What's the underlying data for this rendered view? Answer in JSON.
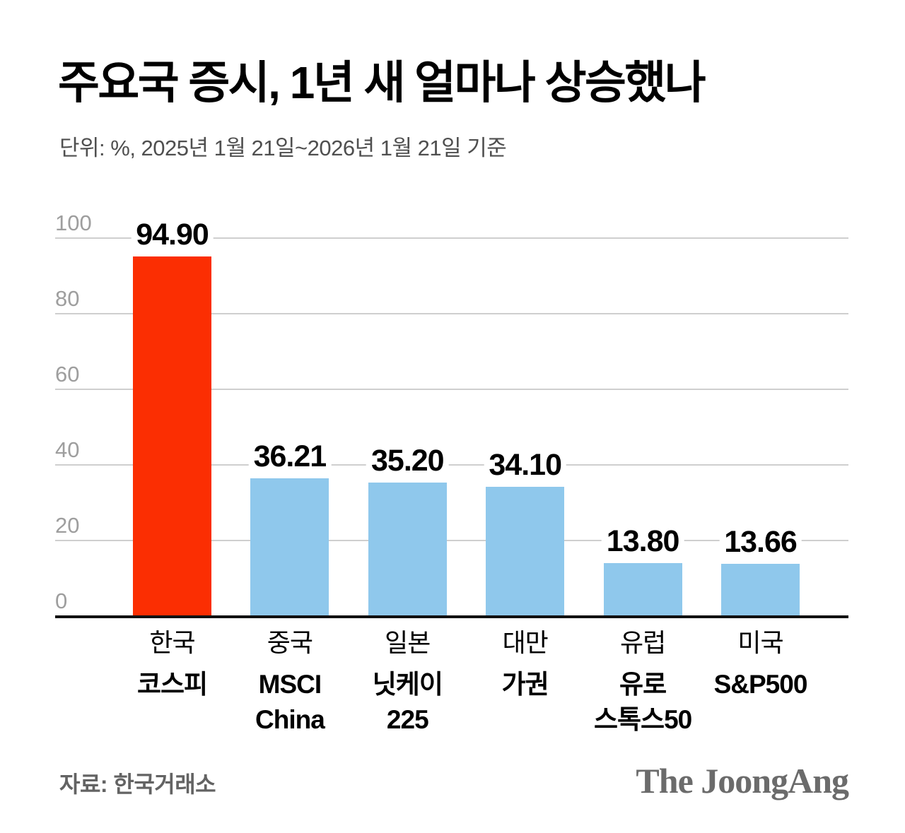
{
  "title": "주요국 증시, 1년 새 얼마나 상승했나",
  "subtitle": "단위: %, 2025년 1월 21일~2026년 1월 21일 기준",
  "source": "자료: 한국거래소",
  "logo": "The JoongAng",
  "colors": {
    "highlight_bar": "#fb2e02",
    "normal_bar": "#8fc8ec",
    "gridline": "#cfcfcf",
    "baseline": "#111111",
    "ytick_text": "#9e9e9e"
  },
  "chart_data": {
    "type": "bar",
    "title": "주요국 증시, 1년 새 얼마나 상승했나",
    "unit": "%",
    "period": "2025년 1월 21일~2026년 1월 21일",
    "categories": [
      {
        "country": "한국",
        "index": "코스피"
      },
      {
        "country": "중국",
        "index": "MSCI\nChina"
      },
      {
        "country": "일본",
        "index": "닛케이\n225"
      },
      {
        "country": "대만",
        "index": "가권"
      },
      {
        "country": "유럽",
        "index": "유로\n스톡스50"
      },
      {
        "country": "미국",
        "index": "S&P500"
      }
    ],
    "values": [
      94.9,
      36.21,
      35.2,
      34.1,
      13.8,
      13.66
    ],
    "value_labels": [
      "94.90",
      "36.21",
      "35.20",
      "34.10",
      "13.80",
      "13.66"
    ],
    "highlight_index": 0,
    "yticks": [
      0,
      20,
      40,
      60,
      80,
      100
    ],
    "ylim": [
      0,
      100
    ],
    "grid": true,
    "legend": false,
    "xlabel": "",
    "ylabel": ""
  }
}
